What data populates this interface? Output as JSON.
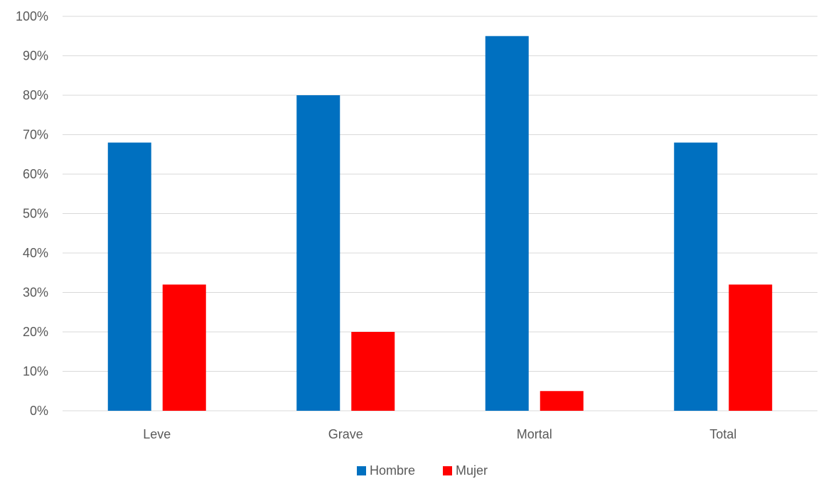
{
  "chart_data": {
    "type": "bar",
    "title": "",
    "xlabel": "",
    "ylabel": "",
    "categories": [
      "Leve",
      "Grave",
      "Mortal",
      "Total"
    ],
    "series": [
      {
        "name": "Hombre",
        "color": "#0070c0",
        "values": [
          0.68,
          0.8,
          0.95,
          0.68
        ]
      },
      {
        "name": "Mujer",
        "color": "#ff0000",
        "values": [
          0.32,
          0.2,
          0.05,
          0.32
        ]
      }
    ],
    "ylim": [
      0,
      1
    ],
    "yticks": [
      "0%",
      "10%",
      "20%",
      "30%",
      "40%",
      "50%",
      "60%",
      "70%",
      "80%",
      "90%",
      "100%"
    ],
    "grid": true,
    "legend_position": "bottom"
  }
}
